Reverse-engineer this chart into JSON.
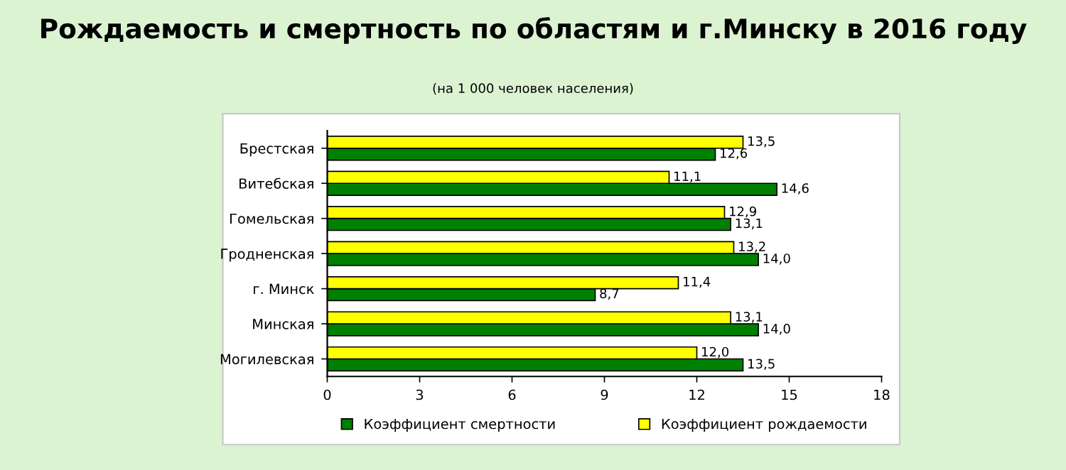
{
  "chart_data": {
    "type": "bar",
    "orientation": "horizontal",
    "title": "Рождаемость и смертность по областям и г.Минску в 2016 году",
    "subtitle": "(на 1 000 человек населения)",
    "categories": [
      "Брестская",
      "Витебская",
      "Гомельская",
      "Гродненская",
      "г. Минск",
      "Минская",
      "Могилевская"
    ],
    "series": [
      {
        "name": "Коэффициент смертности",
        "color": "#008000",
        "values": [
          12.6,
          14.6,
          13.1,
          14.0,
          8.7,
          14.0,
          13.5
        ],
        "value_labels": [
          "12,6",
          "14,6",
          "13,1",
          "14,0",
          "8,7",
          "14,0",
          "13,5"
        ]
      },
      {
        "name": "Коэффициент рождаемости",
        "color": "#ffff00",
        "values": [
          13.5,
          11.1,
          12.9,
          13.2,
          11.4,
          13.1,
          12.0
        ],
        "value_labels": [
          "13,5",
          "11,1",
          "12,9",
          "13,2",
          "11,4",
          "13,1",
          "12,0"
        ]
      }
    ],
    "xlim": [
      0,
      18
    ],
    "xticks": [
      0,
      3,
      6,
      9,
      12,
      15,
      18
    ],
    "legend": "bottom",
    "grid": false
  }
}
